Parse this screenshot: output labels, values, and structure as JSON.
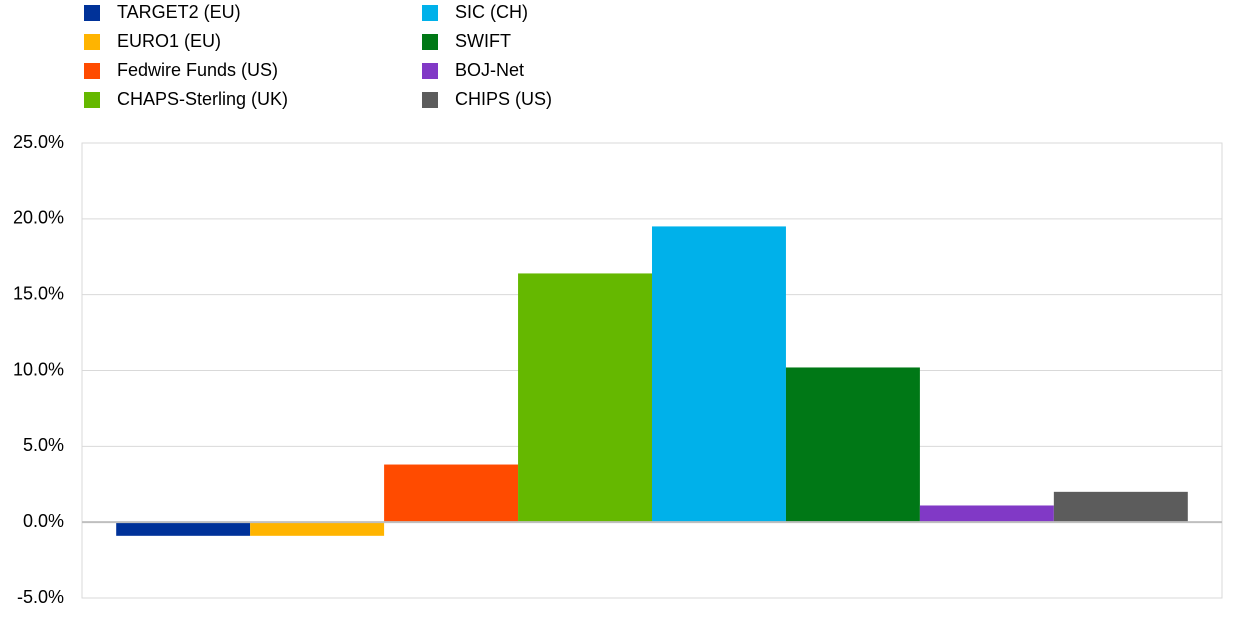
{
  "chart_data": {
    "type": "bar",
    "categories": [
      null
    ],
    "series": [
      {
        "name": "TARGET2 (EU)",
        "color": "#003299",
        "values": [
          -0.9
        ]
      },
      {
        "name": "EURO1 (EU)",
        "color": "#ffb400",
        "values": [
          -0.9
        ]
      },
      {
        "name": "Fedwire Funds (US)",
        "color": "#ff4b00",
        "values": [
          3.8
        ]
      },
      {
        "name": "CHAPS-Sterling (UK)",
        "color": "#65b800",
        "values": [
          16.4
        ]
      },
      {
        "name": "SIC (CH)",
        "color": "#00b1ea",
        "values": [
          19.5
        ]
      },
      {
        "name": "SWIFT",
        "color": "#007816",
        "values": [
          10.2
        ]
      },
      {
        "name": "BOJ-Net",
        "color": "#8139c6",
        "values": [
          1.1
        ]
      },
      {
        "name": "CHIPS (US)",
        "color": "#5c5c5c",
        "values": [
          2.0
        ]
      }
    ],
    "ylim": [
      -5,
      25
    ],
    "yticks": [
      {
        "value": -5,
        "label": "-5.0%"
      },
      {
        "value": 0,
        "label": "0.0%"
      },
      {
        "value": 5,
        "label": "5.0%"
      },
      {
        "value": 10,
        "label": "10.0%"
      },
      {
        "value": 15,
        "label": "15.0%"
      },
      {
        "value": 20,
        "label": "20.0%"
      },
      {
        "value": 25,
        "label": "25.0%"
      }
    ],
    "grid": true,
    "legend": "top-left"
  }
}
